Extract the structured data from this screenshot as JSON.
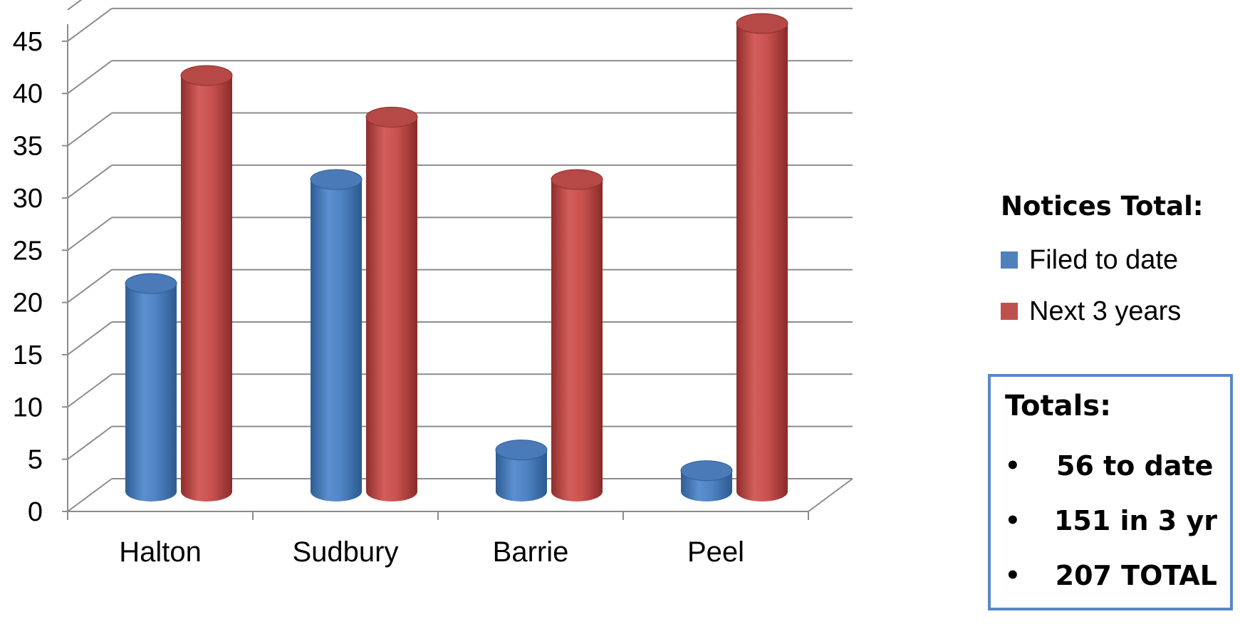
{
  "chart_data": {
    "type": "bar",
    "categories": [
      "Halton",
      "Sudbury",
      "Barrie",
      "Peel"
    ],
    "series": [
      {
        "name": "Filed to date",
        "values": [
          20,
          30,
          4,
          2
        ],
        "color": "#4f81bd"
      },
      {
        "name": "Next 3 years",
        "values": [
          40,
          36,
          30,
          45
        ],
        "color": "#c0504d"
      }
    ],
    "yticks": [
      "0",
      "5",
      "10",
      "15",
      "20",
      "25",
      "30",
      "35",
      "40",
      "45"
    ],
    "ylim": [
      0,
      48
    ],
    "grid": true,
    "legend": {
      "title": "Notices Total:",
      "position": "right"
    }
  },
  "totals": {
    "title": "Totals:",
    "items": [
      "56 to date",
      "151 in 3 yr",
      "207 TOTAL"
    ],
    "bullet": "•",
    "border_color": "#5b87c5"
  }
}
